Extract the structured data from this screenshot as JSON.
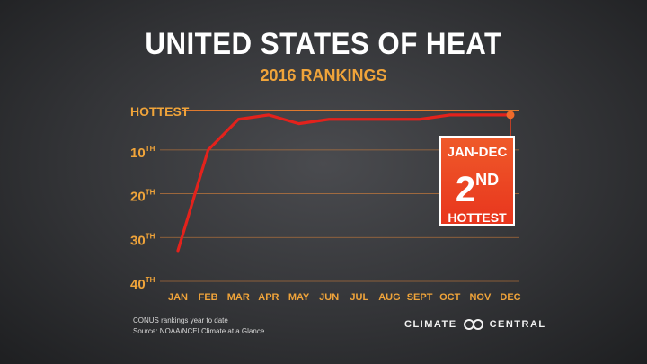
{
  "title": "UNITED STATES OF HEAT",
  "subtitle": "2016 RANKINGS",
  "callout": {
    "period": "JAN-DEC",
    "rank_number": "2",
    "rank_suffix": "ND",
    "label": "HOTTEST"
  },
  "footnote": {
    "line1": "CONUS rankings year to date",
    "line2": "Source: NOAA/NCEI Climate at a Glance"
  },
  "brand": {
    "left": "CLIMATE",
    "right": "CENTRAL"
  },
  "colors": {
    "line": "#e3221c",
    "accent": "#f0a43a",
    "gridline": "#d9823a",
    "callout": "#e8401f"
  },
  "chart_data": {
    "type": "line",
    "title": "UNITED STATES OF HEAT",
    "subtitle": "2016 RANKINGS",
    "categories": [
      "JAN",
      "FEB",
      "MAR",
      "APR",
      "MAY",
      "JUN",
      "JUL",
      "AUG",
      "SEPT",
      "OCT",
      "NOV",
      "DEC"
    ],
    "series": [
      {
        "values": [
          33,
          10,
          3,
          2,
          4,
          3,
          3,
          3,
          3,
          2,
          2,
          2
        ]
      }
    ],
    "y_tick_labels": [
      {
        "value": 1,
        "label": "HOTTEST",
        "sup": ""
      },
      {
        "value": 10,
        "label": "10",
        "sup": "TH"
      },
      {
        "value": 20,
        "label": "20",
        "sup": "TH"
      },
      {
        "value": 30,
        "label": "30",
        "sup": "TH"
      },
      {
        "value": 40,
        "label": "40",
        "sup": "TH"
      }
    ],
    "ylim": [
      1,
      40
    ],
    "y_inverted": true,
    "grid": true
  }
}
